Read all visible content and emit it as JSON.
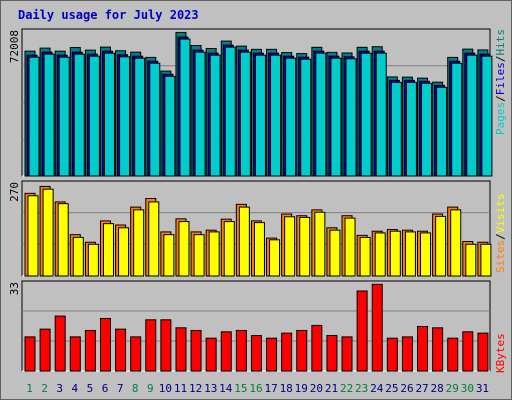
{
  "title": "Daily usage for July 2023",
  "colors": {
    "pages": "#00cccc",
    "files": "#0000cc",
    "hits": "#008080",
    "sites": "#ff8000",
    "visits": "#ffff00",
    "kbytes": "#ff0000",
    "weekend_day": "#008040",
    "weekday": "#000080"
  },
  "panels": {
    "hits": {
      "max_label": "72008",
      "legend": [
        "Pages",
        "Files",
        "Hits"
      ]
    },
    "visits": {
      "max_label": "270",
      "legend": [
        "Sites",
        "Visits"
      ]
    },
    "kbytes": {
      "max_label": "33",
      "legend": [
        "KBytes"
      ]
    }
  },
  "chart_data": [
    {
      "type": "bar",
      "title": "Daily usage for July 2023",
      "ylim": [
        0,
        72008
      ],
      "categories": [
        "1",
        "2",
        "3",
        "4",
        "5",
        "6",
        "7",
        "8",
        "9",
        "10",
        "11",
        "12",
        "13",
        "14",
        "15",
        "16",
        "17",
        "18",
        "19",
        "20",
        "21",
        "22",
        "23",
        "24",
        "25",
        "26",
        "27",
        "28",
        "29",
        "30",
        "31"
      ],
      "series": [
        {
          "name": "Hits",
          "values": [
            62000,
            63500,
            62000,
            63800,
            62500,
            64000,
            62200,
            61500,
            58900,
            52100,
            71300,
            64800,
            63300,
            67000,
            64500,
            62900,
            62900,
            61300,
            60800,
            63900,
            61400,
            61100,
            63900,
            64200,
            49200,
            49100,
            48600,
            46600,
            58900,
            63000,
            62600
          ]
        },
        {
          "name": "Files",
          "values": [
            60000,
            61500,
            60000,
            61500,
            60500,
            62000,
            60200,
            59500,
            57000,
            50500,
            69000,
            62500,
            61000,
            65000,
            62500,
            61000,
            61000,
            59500,
            59000,
            62000,
            59500,
            59200,
            62000,
            62000,
            47500,
            47500,
            47000,
            45000,
            57000,
            61000,
            60500
          ]
        },
        {
          "name": "Pages",
          "values": [
            59000,
            60500,
            59000,
            60500,
            59500,
            61000,
            59200,
            58500,
            56000,
            49500,
            68000,
            61500,
            60000,
            64000,
            61500,
            60000,
            60000,
            58500,
            58000,
            61000,
            58500,
            58200,
            61000,
            61000,
            46500,
            46500,
            46000,
            44000,
            56000,
            60000,
            59500
          ]
        }
      ]
    },
    {
      "type": "bar",
      "ylim": [
        0,
        270
      ],
      "categories": [
        "1",
        "2",
        "3",
        "4",
        "5",
        "6",
        "7",
        "8",
        "9",
        "10",
        "11",
        "12",
        "13",
        "14",
        "15",
        "16",
        "17",
        "18",
        "19",
        "20",
        "21",
        "22",
        "23",
        "24",
        "25",
        "26",
        "27",
        "28",
        "29",
        "30",
        "31"
      ],
      "series": [
        {
          "name": "Visits",
          "values": [
            240,
            260,
            215,
            120,
            98,
            160,
            148,
            200,
            225,
            128,
            166,
            128,
            133,
            165,
            208,
            160,
            110,
            180,
            175,
            192,
            140,
            175,
            118,
            130,
            135,
            133,
            130,
            180,
            200,
            100,
            98
          ]
        },
        {
          "name": "Sites",
          "values": [
            233,
            252,
            210,
            112,
            92,
            152,
            140,
            192,
            215,
            120,
            158,
            120,
            128,
            158,
            200,
            155,
            105,
            172,
            170,
            185,
            133,
            168,
            112,
            125,
            130,
            128,
            125,
            173,
            192,
            92,
            92
          ]
        }
      ]
    },
    {
      "type": "bar",
      "ylim": [
        0,
        33
      ],
      "categories": [
        "1",
        "2",
        "3",
        "4",
        "5",
        "6",
        "7",
        "8",
        "9",
        "10",
        "11",
        "12",
        "13",
        "14",
        "15",
        "16",
        "17",
        "18",
        "19",
        "20",
        "21",
        "22",
        "23",
        "24",
        "25",
        "26",
        "27",
        "28",
        "29",
        "30",
        "31"
      ],
      "series": [
        {
          "name": "KBytes",
          "values": [
            12.8,
            15.7,
            20.6,
            12.8,
            15.2,
            19.7,
            15.7,
            12.8,
            19.2,
            19.2,
            16.2,
            15.2,
            12.3,
            14.7,
            15.2,
            13.3,
            12.3,
            14.2,
            15.2,
            17.1,
            13.3,
            12.8,
            30.0,
            32.5,
            12.3,
            12.8,
            16.7,
            16.2,
            12.3,
            14.7,
            14.2
          ]
        }
      ]
    }
  ]
}
